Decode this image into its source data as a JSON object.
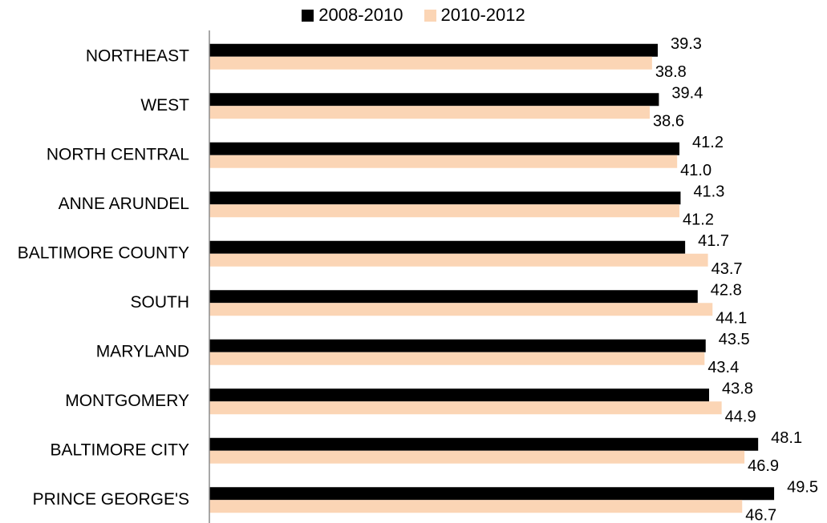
{
  "chart_data": {
    "type": "bar",
    "orientation": "horizontal",
    "categories": [
      "NORTHEAST",
      "WEST",
      "NORTH CENTRAL",
      "ANNE ARUNDEL",
      "BALTIMORE COUNTY",
      "SOUTH",
      "MARYLAND",
      "MONTGOMERY",
      "BALTIMORE CITY",
      "PRINCE GEORGE'S"
    ],
    "series": [
      {
        "name": "2008-2010",
        "color": "#000000",
        "values": [
          39.3,
          39.4,
          41.2,
          41.3,
          41.7,
          42.8,
          43.5,
          43.8,
          48.1,
          49.5
        ]
      },
      {
        "name": "2010-2012",
        "color": "#FBD5B5",
        "values": [
          38.8,
          38.6,
          41.0,
          41.2,
          43.7,
          44.1,
          43.4,
          44.9,
          46.9,
          46.7
        ]
      }
    ],
    "value_labels": [
      [
        "39.3",
        "39.4",
        "41.2",
        "41.3",
        "41.7",
        "42.8",
        "43.5",
        "43.8",
        "48.1",
        "49.5"
      ],
      [
        "38.8",
        "38.6",
        "41.0",
        "41.2",
        "43.7",
        "44.1",
        "43.4",
        "44.9",
        "46.9",
        "46.7"
      ]
    ],
    "xlim": [
      0,
      50
    ],
    "legend_position": "top-center",
    "grid": false,
    "x_axis_visible": false
  }
}
